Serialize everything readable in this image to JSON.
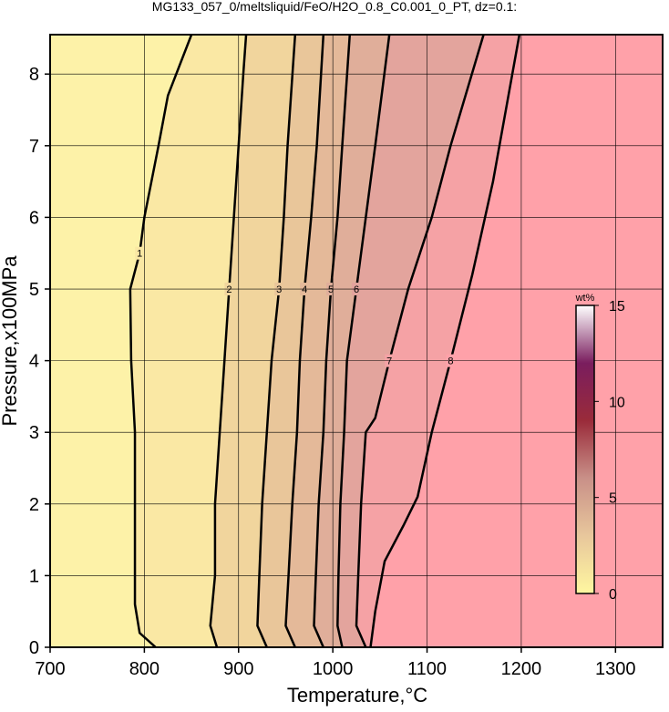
{
  "chart_data": {
    "type": "contour",
    "title": "MG133_057_0/meltsliquid/FeO/H2O_0.8_C0.001_0_PT, dz=0.1:",
    "x_label": "Temperature,°C",
    "y_label": "Pressure,x100MPa",
    "xlim": [
      700,
      1350
    ],
    "ylim": [
      0,
      8.55
    ],
    "xticks": [
      700,
      800,
      900,
      1000,
      1100,
      1200,
      1300
    ],
    "yticks": [
      0,
      1,
      2,
      3,
      4,
      5,
      6,
      7,
      8
    ],
    "grid": true,
    "background_color": "#fdf2a8",
    "contours": [
      {
        "level": 1,
        "color": "#fae8a4",
        "T": [
          812,
          795,
          790,
          790,
          790,
          786,
          785,
          795,
          800,
          815,
          825,
          850
        ],
        "P": [
          0,
          0.2,
          0.6,
          1.5,
          3,
          4,
          5,
          5.5,
          6,
          7,
          7.7,
          8.55
        ]
      },
      {
        "level": 2,
        "color": "#f1d59d",
        "T": [
          877,
          870,
          875,
          875,
          880,
          885,
          890,
          895,
          900,
          905,
          908
        ],
        "P": [
          0,
          0.3,
          1,
          2,
          3,
          4,
          5,
          6,
          7,
          8,
          8.55
        ]
      },
      {
        "level": 3,
        "color": "#e9c69a",
        "T": [
          930,
          920,
          922,
          925,
          930,
          935,
          943,
          948,
          952,
          960
        ],
        "P": [
          0,
          0.3,
          1,
          2,
          3,
          4,
          5,
          6,
          7,
          8.55
        ]
      },
      {
        "level": 4,
        "color": "#e4b999",
        "T": [
          960,
          950,
          953,
          957,
          962,
          965,
          970,
          977,
          983,
          990
        ],
        "P": [
          0,
          0.3,
          1,
          2,
          3,
          4,
          5,
          6,
          7,
          8.55
        ]
      },
      {
        "level": 5,
        "color": "#e0ae9a",
        "T": [
          990,
          980,
          982,
          985,
          990,
          993,
          998,
          1005,
          1010,
          1018
        ],
        "P": [
          0,
          0.3,
          1,
          2,
          3,
          4,
          5,
          6,
          7,
          8.55
        ]
      },
      {
        "level": 6,
        "color": "#e3a49d",
        "T": [
          1010,
          1005,
          1006,
          1008,
          1012,
          1015,
          1025,
          1035,
          1045,
          1060
        ],
        "P": [
          0,
          0.3,
          1,
          2,
          3,
          4,
          5,
          6,
          7,
          8.55
        ]
      },
      {
        "level": 7,
        "color": "#f5a2a5",
        "T": [
          1035,
          1025,
          1027,
          1030,
          1035,
          1045,
          1060,
          1080,
          1105,
          1125,
          1160
        ],
        "P": [
          0,
          0.3,
          1,
          2,
          3,
          3.2,
          4,
          5,
          6,
          7,
          8.55
        ]
      },
      {
        "level": 8,
        "color": "#ffa1a9",
        "T": [
          1040,
          1045,
          1055,
          1075,
          1090,
          1105,
          1125,
          1148,
          1170,
          1198
        ],
        "P": [
          0,
          0.5,
          1.2,
          1.7,
          2.1,
          3,
          4,
          5.2,
          6.5,
          8.55
        ]
      }
    ],
    "colorbar": {
      "label": "wt%",
      "lim": [
        0,
        15
      ],
      "ticks": [
        0,
        5,
        10,
        15
      ],
      "colors": [
        "#fff7a0",
        "#e8c79c",
        "#c99088",
        "#9a2b3a",
        "#7a1d5e",
        "#ffffff"
      ]
    }
  }
}
